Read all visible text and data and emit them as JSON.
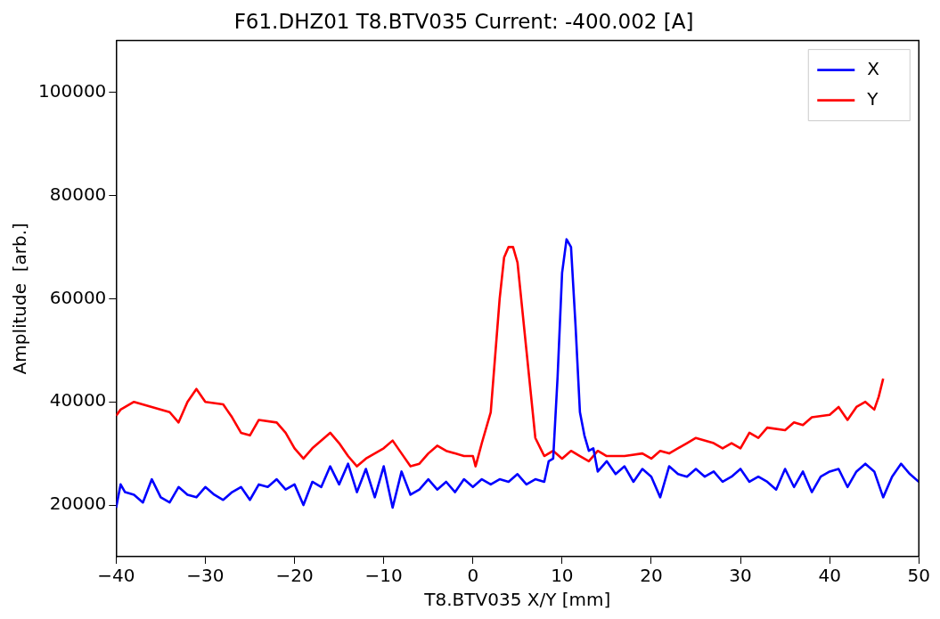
{
  "chart_data": {
    "type": "line",
    "title": "F61.DHZ01 T8.BTV035 Current: -400.002 [A]",
    "xlabel": "T8.BTV035 X/Y [mm]",
    "ylabel": "Amplitude  [arb.]",
    "xlim": [
      -40,
      50
    ],
    "xticks": [
      {
        "value": -40,
        "label": "−40"
      },
      {
        "value": -30,
        "label": "−30"
      },
      {
        "value": -20,
        "label": "−20"
      },
      {
        "value": -10,
        "label": "−10"
      },
      0,
      10,
      20,
      30,
      40,
      50
    ],
    "ylim": [
      10000,
      110000
    ],
    "yticks": [
      20000,
      40000,
      60000,
      80000,
      100000
    ],
    "grid": false,
    "legend": "top right",
    "marker": "none",
    "line_style": "solid",
    "series": [
      {
        "name": "X",
        "color": "#0000ff",
        "x": [
          -40,
          -39.5,
          -39,
          -38,
          -37,
          -36,
          -35,
          -34,
          -33,
          -32,
          -31,
          -30,
          -29,
          -28,
          -27,
          -26,
          -25,
          -24,
          -23,
          -22,
          -21,
          -20,
          -19,
          -18,
          -17,
          -16,
          -15,
          -14,
          -13,
          -12,
          -11,
          -10,
          -9,
          -8,
          -7,
          -6,
          -5,
          -4,
          -3,
          -2,
          -1,
          0,
          1,
          2,
          3,
          4,
          5,
          6,
          7,
          8,
          8.5,
          9,
          9.5,
          10,
          10.5,
          11,
          11.5,
          12,
          12.5,
          13,
          13.5,
          14,
          15,
          16,
          17,
          18,
          19,
          20,
          21,
          22,
          23,
          24,
          25,
          26,
          27,
          28,
          29,
          30,
          31,
          32,
          33,
          34,
          35,
          36,
          37,
          38,
          39,
          40,
          41,
          42,
          43,
          44,
          45,
          46,
          47,
          48,
          49,
          50
        ],
        "values": [
          19500,
          24000,
          22500,
          22000,
          20500,
          25000,
          21500,
          20500,
          23500,
          22000,
          21500,
          23500,
          22000,
          21000,
          22500,
          23500,
          21000,
          24000,
          23500,
          25000,
          23000,
          24000,
          20000,
          24500,
          23500,
          27500,
          24000,
          28000,
          22500,
          27000,
          21500,
          27500,
          19500,
          26500,
          22000,
          23000,
          25000,
          23000,
          24500,
          22500,
          25000,
          23500,
          25000,
          24000,
          25000,
          24500,
          26000,
          24000,
          25000,
          24500,
          28500,
          29000,
          45000,
          65000,
          71500,
          70000,
          55000,
          38000,
          33500,
          30500,
          31000,
          26500,
          28500,
          26000,
          27500,
          24500,
          27000,
          25500,
          21500,
          27500,
          26000,
          25500,
          27000,
          25500,
          26500,
          24500,
          25500,
          27000,
          24500,
          25500,
          24500,
          23000,
          27000,
          23500,
          26500,
          22500,
          25500,
          26500,
          27000,
          23500,
          26500,
          28000,
          26500,
          21500,
          25500,
          28000,
          26000,
          24500
        ]
      },
      {
        "name": "Y",
        "color": "#ff0000",
        "x": [
          -40,
          -39.5,
          -38,
          -36,
          -34,
          -33,
          -32,
          -31,
          -30,
          -28,
          -27,
          -26,
          -25,
          -24,
          -22,
          -21,
          -20,
          -19,
          -18,
          -16,
          -15,
          -14,
          -13,
          -12,
          -10,
          -9,
          -8,
          -7,
          -6,
          -5,
          -4,
          -3,
          -2,
          -1,
          0,
          0.3,
          1,
          2,
          3,
          3.5,
          4,
          4.5,
          5,
          6,
          7,
          8,
          9,
          10,
          11,
          12,
          13,
          14,
          15,
          17,
          19,
          20,
          21,
          22,
          24,
          25,
          27,
          28,
          29,
          30,
          31,
          32,
          33,
          35,
          36,
          37,
          38,
          40,
          41,
          42,
          43,
          44,
          45,
          45.5,
          46
        ],
        "values": [
          37300,
          38500,
          40000,
          39000,
          38000,
          36000,
          40000,
          42500,
          40000,
          39500,
          37000,
          34000,
          33500,
          36500,
          36000,
          34000,
          31000,
          29000,
          31000,
          34000,
          32000,
          29500,
          27500,
          29000,
          31000,
          32500,
          30000,
          27500,
          28000,
          30000,
          31500,
          30500,
          30000,
          29500,
          29500,
          27500,
          32000,
          38000,
          60000,
          68000,
          70000,
          70000,
          67000,
          50000,
          33000,
          29500,
          30500,
          29000,
          30500,
          29500,
          28500,
          30500,
          29500,
          29500,
          30000,
          29000,
          30500,
          30000,
          32000,
          33000,
          32000,
          31000,
          32000,
          31000,
          34000,
          33000,
          35000,
          34500,
          36000,
          35500,
          37000,
          37500,
          39000,
          36500,
          39000,
          40000,
          38500,
          41000,
          44500
        ]
      }
    ]
  }
}
